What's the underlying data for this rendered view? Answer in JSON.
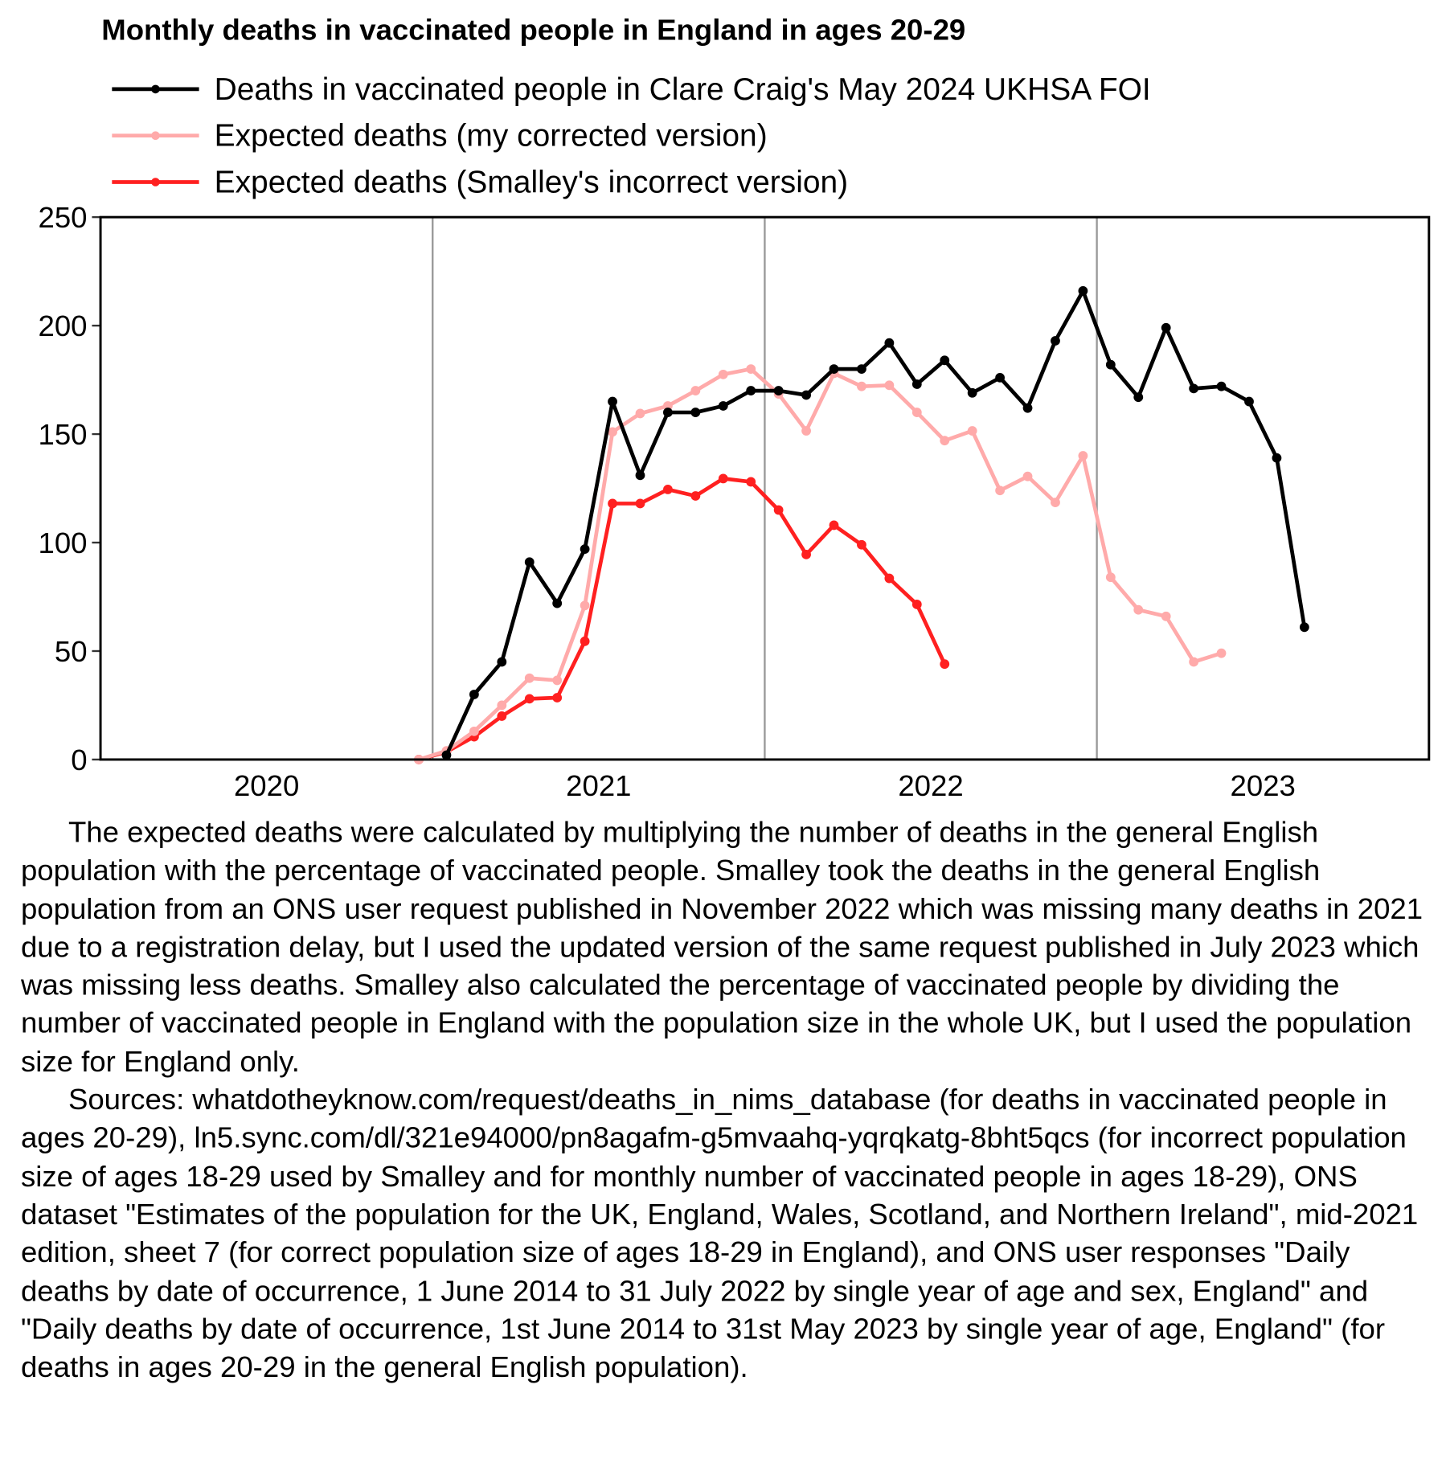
{
  "chart_data": {
    "type": "line",
    "title": "Monthly deaths in vaccinated people in England in ages 20-29",
    "xlabel": "",
    "ylabel": "",
    "ylim": [
      0,
      250
    ],
    "yticks": [
      "0",
      "50",
      "100",
      "150",
      "200",
      "250"
    ],
    "xticks": [
      "2020",
      "2021",
      "2022",
      "2023"
    ],
    "x_range": [
      "2020-01",
      "2023-12"
    ],
    "grid": "vertical lines at year boundaries",
    "legend": "top-left, above plot",
    "series": [
      {
        "name": "Deaths in vaccinated people in Clare Craig's May 2024 UKHSA FOI",
        "color": "#000000",
        "start": "2021-01",
        "values": [
          2,
          30,
          45,
          91,
          72,
          97,
          165,
          131,
          160,
          160,
          163,
          170,
          170,
          168,
          180,
          180,
          192,
          173,
          184,
          169,
          176,
          162,
          193,
          216,
          182,
          167,
          199,
          171,
          172,
          165,
          139,
          61
        ]
      },
      {
        "name": "Expected deaths (my corrected version)",
        "color": "#ffaaaa",
        "start": "2020-12",
        "values": [
          0,
          4,
          13,
          25,
          37.5,
          36.5,
          71,
          151,
          159.5,
          163,
          170,
          177.5,
          180,
          168.5,
          151.5,
          178,
          172,
          172.5,
          160,
          147,
          151.5,
          124,
          130.5,
          118.5,
          140,
          84,
          69,
          66,
          45,
          49
        ]
      },
      {
        "name": "Expected deaths (Smalley's incorrect version)",
        "color": "#ff2020",
        "start": "2020-12",
        "values": [
          0,
          3.5,
          10.5,
          20,
          28,
          28.5,
          54.5,
          118,
          118,
          124.5,
          121.5,
          129.5,
          128,
          115,
          94.5,
          108,
          99,
          83.5,
          71.5,
          44
        ]
      }
    ]
  },
  "notes": [
    "The expected deaths were calculated by multiplying the number of deaths in the general English population with the percentage of vaccinated people. Smalley took the deaths in the general English population from an ONS user request published in November 2022 which was missing many deaths in 2021 due to a registration delay, but I used the updated version of the same request published in July 2023 which was missing less deaths. Smalley also calculated the percentage of vaccinated people by dividing the number of vaccinated people in England with the population size in the whole UK, but I used the population size for England only.",
    "Sources: whatdotheyknow.com/request/deaths_in_nims_database (for deaths in vaccinated people in ages 20-29), ln5.sync.com/dl/321e94000/pn8agafm-g5mvaahq-yqrqkatg-8bht5qcs (for incorrect population size of ages 18-29 used by Smalley and for monthly number of vaccinated people in ages 18-29), ONS dataset \"Estimates of the population for the UK, England, Wales, Scotland, and Northern Ireland\", mid-2021 edition, sheet 7 (for correct population size of ages 18-29 in England), and ONS user responses \"Daily deaths by date of occurrence, 1 June 2014 to 31 July 2022 by single year of age and sex, England\" and \"Daily deaths by date of occurrence, 1st June 2014 to 31st May 2023 by single year of age, England\" (for deaths in ages 20-29 in the general English population)."
  ]
}
